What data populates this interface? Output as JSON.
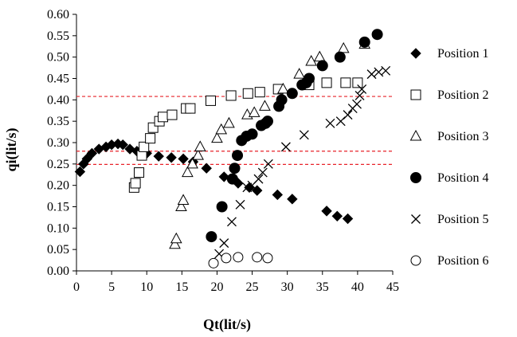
{
  "chart_data": {
    "type": "scatter",
    "title": "",
    "xlabel": "Qt(lit/s)",
    "ylabel": "qi(lit/s)",
    "xlim": [
      0,
      45
    ],
    "ylim": [
      0,
      0.6
    ],
    "xticks": [
      0,
      5,
      10,
      15,
      20,
      25,
      30,
      35,
      40,
      45
    ],
    "yticks": [
      0.0,
      0.05,
      0.1,
      0.15,
      0.2,
      0.25,
      0.3,
      0.35,
      0.4,
      0.45,
      0.5,
      0.55,
      0.6
    ],
    "xtick_labels": [
      "0",
      "5",
      "10",
      "15",
      "20",
      "25",
      "30",
      "35",
      "40",
      "45"
    ],
    "ytick_labels": [
      "0.00",
      "0.05",
      "0.10",
      "0.15",
      "0.20",
      "0.25",
      "0.30",
      "0.35",
      "0.40",
      "0.45",
      "0.50",
      "0.55",
      "0.60"
    ],
    "grid": false,
    "legend_position": "right",
    "reference_lines": [
      {
        "y": 0.408,
        "style": "dashed",
        "color": "#e8232a"
      },
      {
        "y": 0.28,
        "style": "dashed",
        "color": "#e8232a"
      },
      {
        "y": 0.249,
        "style": "dashed",
        "color": "#e8232a"
      }
    ],
    "series": [
      {
        "name": "Position 1",
        "marker": "diamond-filled",
        "points": [
          [
            0.5,
            0.232
          ],
          [
            1.0,
            0.25
          ],
          [
            1.5,
            0.262
          ],
          [
            2.2,
            0.275
          ],
          [
            3.2,
            0.285
          ],
          [
            4.2,
            0.29
          ],
          [
            5.0,
            0.295
          ],
          [
            5.9,
            0.297
          ],
          [
            6.6,
            0.295
          ],
          [
            7.6,
            0.285
          ],
          [
            8.6,
            0.28
          ],
          [
            10.0,
            0.275
          ],
          [
            11.7,
            0.268
          ],
          [
            13.5,
            0.265
          ],
          [
            15.2,
            0.262
          ],
          [
            16.6,
            0.255
          ],
          [
            18.5,
            0.24
          ],
          [
            21.0,
            0.22
          ],
          [
            23.0,
            0.205
          ],
          [
            24.6,
            0.195
          ],
          [
            25.7,
            0.188
          ],
          [
            28.6,
            0.178
          ],
          [
            30.7,
            0.168
          ],
          [
            35.6,
            0.14
          ],
          [
            37.1,
            0.128
          ],
          [
            38.6,
            0.122
          ]
        ]
      },
      {
        "name": "Position 2",
        "marker": "square-open",
        "points": [
          [
            8.2,
            0.195
          ],
          [
            8.4,
            0.205
          ],
          [
            8.9,
            0.23
          ],
          [
            9.3,
            0.27
          ],
          [
            9.6,
            0.29
          ],
          [
            10.5,
            0.31
          ],
          [
            10.9,
            0.335
          ],
          [
            11.8,
            0.35
          ],
          [
            12.3,
            0.36
          ],
          [
            13.6,
            0.365
          ],
          [
            15.6,
            0.38
          ],
          [
            16.2,
            0.38
          ],
          [
            19.1,
            0.398
          ],
          [
            22.0,
            0.41
          ],
          [
            24.4,
            0.415
          ],
          [
            26.1,
            0.418
          ],
          [
            28.7,
            0.425
          ],
          [
            33.1,
            0.435
          ],
          [
            35.6,
            0.44
          ],
          [
            38.3,
            0.44
          ],
          [
            40.0,
            0.44
          ]
        ]
      },
      {
        "name": "Position 3",
        "marker": "triangle-open",
        "points": [
          [
            14.0,
            0.062
          ],
          [
            14.2,
            0.075
          ],
          [
            14.9,
            0.15
          ],
          [
            15.2,
            0.165
          ],
          [
            15.8,
            0.23
          ],
          [
            16.5,
            0.25
          ],
          [
            17.3,
            0.27
          ],
          [
            17.6,
            0.29
          ],
          [
            20.0,
            0.31
          ],
          [
            20.6,
            0.33
          ],
          [
            21.7,
            0.345
          ],
          [
            24.3,
            0.365
          ],
          [
            25.3,
            0.37
          ],
          [
            26.8,
            0.385
          ],
          [
            29.4,
            0.425
          ],
          [
            31.7,
            0.46
          ],
          [
            33.4,
            0.49
          ],
          [
            34.6,
            0.5
          ],
          [
            38.0,
            0.52
          ],
          [
            41.0,
            0.53
          ]
        ]
      },
      {
        "name": "Position 4",
        "marker": "circle-filled",
        "points": [
          [
            19.2,
            0.08
          ],
          [
            20.7,
            0.15
          ],
          [
            22.5,
            0.24
          ],
          [
            22.9,
            0.27
          ],
          [
            22.2,
            0.215
          ],
          [
            23.5,
            0.305
          ],
          [
            24.2,
            0.315
          ],
          [
            25.0,
            0.32
          ],
          [
            26.3,
            0.34
          ],
          [
            26.9,
            0.345
          ],
          [
            27.2,
            0.35
          ],
          [
            28.8,
            0.385
          ],
          [
            29.2,
            0.4
          ],
          [
            30.7,
            0.415
          ],
          [
            32.1,
            0.435
          ],
          [
            32.7,
            0.44
          ],
          [
            33.1,
            0.45
          ],
          [
            35.0,
            0.48
          ],
          [
            37.5,
            0.5
          ],
          [
            41.0,
            0.535
          ],
          [
            42.8,
            0.553
          ]
        ]
      },
      {
        "name": "Position 5",
        "marker": "x",
        "points": [
          [
            20.3,
            0.04
          ],
          [
            21.0,
            0.065
          ],
          [
            22.1,
            0.115
          ],
          [
            23.3,
            0.155
          ],
          [
            24.3,
            0.195
          ],
          [
            25.0,
            0.2
          ],
          [
            25.9,
            0.215
          ],
          [
            26.5,
            0.23
          ],
          [
            27.3,
            0.25
          ],
          [
            29.8,
            0.29
          ],
          [
            32.4,
            0.318
          ],
          [
            36.1,
            0.345
          ],
          [
            37.6,
            0.35
          ],
          [
            38.6,
            0.365
          ],
          [
            39.3,
            0.38
          ],
          [
            39.9,
            0.39
          ],
          [
            40.3,
            0.41
          ],
          [
            40.6,
            0.425
          ],
          [
            42.0,
            0.46
          ],
          [
            43.0,
            0.465
          ],
          [
            44.0,
            0.468
          ]
        ]
      },
      {
        "name": "Position 6",
        "marker": "circle-open",
        "points": [
          [
            19.5,
            0.018
          ],
          [
            21.3,
            0.03
          ],
          [
            23.0,
            0.032
          ],
          [
            25.7,
            0.032
          ],
          [
            27.2,
            0.03
          ]
        ]
      }
    ]
  }
}
